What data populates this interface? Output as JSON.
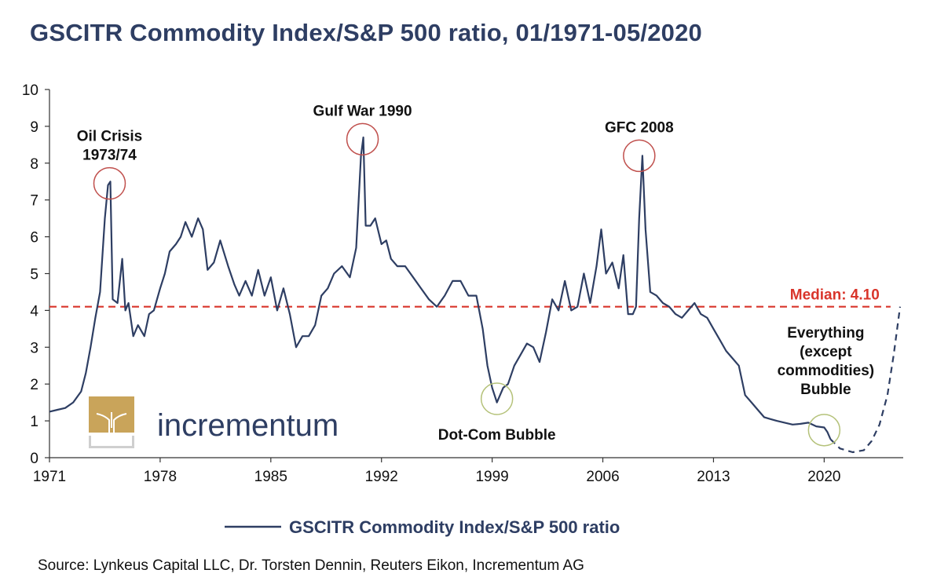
{
  "title": "GSCITR Commodity Index/S&P 500 ratio, 01/1971-05/2020",
  "source": "Source: Lynkeus Capital LLC, Dr. Torsten Dennin, Reuters Eikon, Incrementum AG",
  "logo": {
    "text": "incrementum",
    "icon": "tree-icon"
  },
  "colors": {
    "series": "#2e3e63",
    "median": "#d9352b",
    "circle_red": "#c0504d",
    "circle_green": "#b5c27a",
    "title": "#2e3e63"
  },
  "chart_data": {
    "type": "line",
    "xlim": [
      1971,
      2025
    ],
    "ylim": [
      0,
      10
    ],
    "x_ticks": [
      1971,
      1978,
      1985,
      1992,
      1999,
      2006,
      2013,
      2020
    ],
    "y_ticks": [
      0,
      1,
      2,
      3,
      4,
      5,
      6,
      7,
      8,
      9,
      10
    ],
    "grid": false,
    "legend": {
      "position": "bottom-center",
      "label": "GSCITR Commodity Index/S&P 500 ratio"
    },
    "median": {
      "value": 4.1,
      "label": "Median: 4.10"
    },
    "series": [
      {
        "name": "GSCITR Commodity Index/S&P 500 ratio",
        "x": [
          1971.0,
          1971.5,
          1972.0,
          1972.5,
          1973.0,
          1973.3,
          1973.6,
          1973.9,
          1974.2,
          1974.5,
          1974.7,
          1974.85,
          1975.0,
          1975.3,
          1975.6,
          1975.8,
          1976.0,
          1976.3,
          1976.6,
          1977.0,
          1977.3,
          1977.6,
          1978.0,
          1978.3,
          1978.6,
          1979.0,
          1979.3,
          1979.6,
          1980.0,
          1980.4,
          1980.7,
          1981.0,
          1981.4,
          1981.8,
          1982.3,
          1982.7,
          1983.0,
          1983.4,
          1983.8,
          1984.2,
          1984.6,
          1985.0,
          1985.4,
          1985.8,
          1986.2,
          1986.6,
          1987.0,
          1987.4,
          1987.8,
          1988.2,
          1988.6,
          1989.0,
          1989.5,
          1990.0,
          1990.4,
          1990.7,
          1990.85,
          1991.0,
          1991.3,
          1991.6,
          1992.0,
          1992.3,
          1992.6,
          1993.0,
          1993.5,
          1994.0,
          1994.5,
          1995.0,
          1995.5,
          1996.0,
          1996.5,
          1997.0,
          1997.5,
          1998.0,
          1998.4,
          1998.7,
          1999.0,
          1999.3,
          1999.7,
          2000.0,
          2000.4,
          2000.8,
          2001.2,
          2001.6,
          2002.0,
          2002.4,
          2002.8,
          2003.2,
          2003.6,
          2004.0,
          2004.4,
          2004.8,
          2005.2,
          2005.6,
          2005.9,
          2006.2,
          2006.6,
          2007.0,
          2007.3,
          2007.6,
          2007.9,
          2008.1,
          2008.3,
          2008.5,
          2008.7,
          2009.0,
          2009.4,
          2009.8,
          2010.2,
          2010.6,
          2011.0,
          2011.4,
          2011.8,
          2012.2,
          2012.6,
          2013.0,
          2013.4,
          2013.8,
          2014.2,
          2014.6,
          2015.0,
          2015.4,
          2015.8,
          2016.2,
          2016.6,
          2017.0,
          2017.5,
          2018.0,
          2018.5,
          2019.0,
          2019.5,
          2020.0,
          2020.2,
          2020.4
        ],
        "y": [
          1.25,
          1.3,
          1.35,
          1.5,
          1.8,
          2.3,
          3.0,
          3.8,
          4.5,
          6.5,
          7.4,
          7.5,
          4.3,
          4.2,
          5.4,
          4.0,
          4.2,
          3.3,
          3.6,
          3.3,
          3.9,
          4.0,
          4.6,
          5.0,
          5.6,
          5.8,
          6.0,
          6.4,
          6.0,
          6.5,
          6.2,
          5.1,
          5.3,
          5.9,
          5.2,
          4.7,
          4.4,
          4.8,
          4.4,
          5.1,
          4.4,
          4.9,
          4.0,
          4.6,
          3.9,
          3.0,
          3.3,
          3.3,
          3.6,
          4.4,
          4.6,
          5.0,
          5.2,
          4.9,
          5.7,
          8.2,
          8.7,
          6.3,
          6.3,
          6.5,
          5.8,
          5.9,
          5.4,
          5.2,
          5.2,
          4.9,
          4.6,
          4.3,
          4.1,
          4.4,
          4.8,
          4.8,
          4.4,
          4.4,
          3.5,
          2.5,
          1.9,
          1.5,
          1.9,
          2.0,
          2.5,
          2.8,
          3.1,
          3.0,
          2.6,
          3.4,
          4.3,
          4.0,
          4.8,
          4.0,
          4.1,
          5.0,
          4.2,
          5.2,
          6.2,
          5.0,
          5.3,
          4.6,
          5.5,
          3.9,
          3.9,
          4.1,
          6.5,
          8.2,
          6.2,
          4.5,
          4.4,
          4.2,
          4.1,
          3.9,
          3.8,
          4.0,
          4.2,
          3.9,
          3.8,
          3.5,
          3.2,
          2.9,
          2.7,
          2.5,
          1.7,
          1.5,
          1.3,
          1.1,
          1.05,
          1.0,
          0.95,
          0.9,
          0.92,
          0.95,
          0.85,
          0.82,
          0.7,
          0.5
        ]
      },
      {
        "name": "",
        "projected": true,
        "x": [
          2020.4,
          2021.0,
          2021.8,
          2022.5,
          2023.0,
          2023.5,
          2024.0,
          2024.4,
          2024.8
        ],
        "y": [
          0.5,
          0.25,
          0.15,
          0.2,
          0.45,
          0.9,
          1.7,
          2.8,
          4.1
        ]
      }
    ],
    "annotations": [
      {
        "text": [
          "Oil Crisis",
          "1973/74"
        ],
        "x": 1974.8,
        "y": 7.45,
        "circle": "red"
      },
      {
        "text": [
          "Gulf War 1990"
        ],
        "x": 1990.8,
        "y": 8.65,
        "circle": "red"
      },
      {
        "text": [
          "GFC 2008"
        ],
        "x": 2008.3,
        "y": 8.2,
        "circle": "red"
      },
      {
        "text": [
          "Dot-Com Bubble"
        ],
        "x": 1999.3,
        "y": 1.6,
        "circle": "green"
      },
      {
        "text": [
          "Everything",
          "(except",
          "commodities)",
          "Bubble"
        ],
        "x": 2020.0,
        "y": 0.75,
        "circle": "green"
      }
    ]
  }
}
